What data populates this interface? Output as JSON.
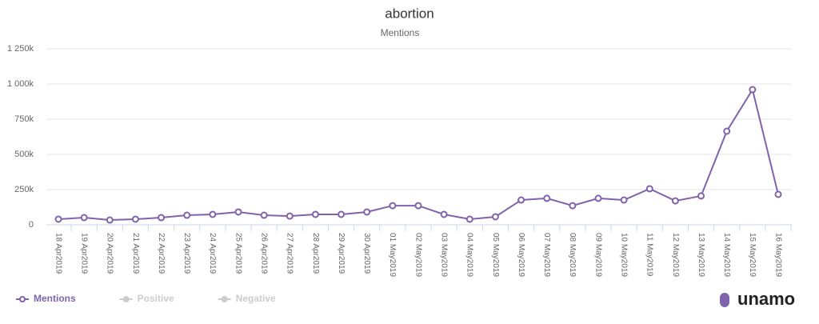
{
  "chart_data": {
    "type": "line",
    "title": "abortion",
    "subtitle": "Mentions",
    "categories": [
      "18 Apr2019",
      "19 Apr2019",
      "20 Apr2019",
      "21 Apr2019",
      "22 Apr2019",
      "23 Apr2019",
      "24 Apr2019",
      "25 Apr2019",
      "26 Apr2019",
      "27 Apr2019",
      "28 Apr2019",
      "29 Apr2019",
      "30 Apr2019",
      "01 May2019",
      "02 May2019",
      "03 May2019",
      "04 May2019",
      "05 May2019",
      "06 May2019",
      "07 May2019",
      "08 May2019",
      "09 May2019",
      "10 May2019",
      "11 May2019",
      "12 May2019",
      "13 May2019",
      "14 May2019",
      "15 May2019",
      "16 May2019"
    ],
    "series": [
      {
        "name": "Mentions",
        "color": "#7f63ad",
        "values": [
          40000,
          51000,
          34000,
          40000,
          51000,
          68000,
          74000,
          91000,
          68000,
          62000,
          74000,
          74000,
          91000,
          136000,
          136000,
          74000,
          40000,
          57000,
          176000,
          188000,
          136000,
          188000,
          176000,
          256000,
          170000,
          205000,
          665000,
          960000,
          216000
        ]
      }
    ],
    "inactive_series": [
      {
        "name": "Positive",
        "color": "#cccccc"
      },
      {
        "name": "Negative",
        "color": "#cccccc"
      }
    ],
    "ylim": [
      0,
      1250000
    ],
    "yticks": [
      0,
      {
        "value": 250000,
        "label": "250k"
      },
      {
        "value": 500000,
        "label": "500k"
      },
      {
        "value": 750000,
        "label": "750k"
      },
      {
        "value": 1000000,
        "label": "1 000k"
      },
      {
        "value": 1250000,
        "label": "1 250k"
      }
    ],
    "grid": true,
    "legend": "bottom-left",
    "brand": "unamo"
  }
}
